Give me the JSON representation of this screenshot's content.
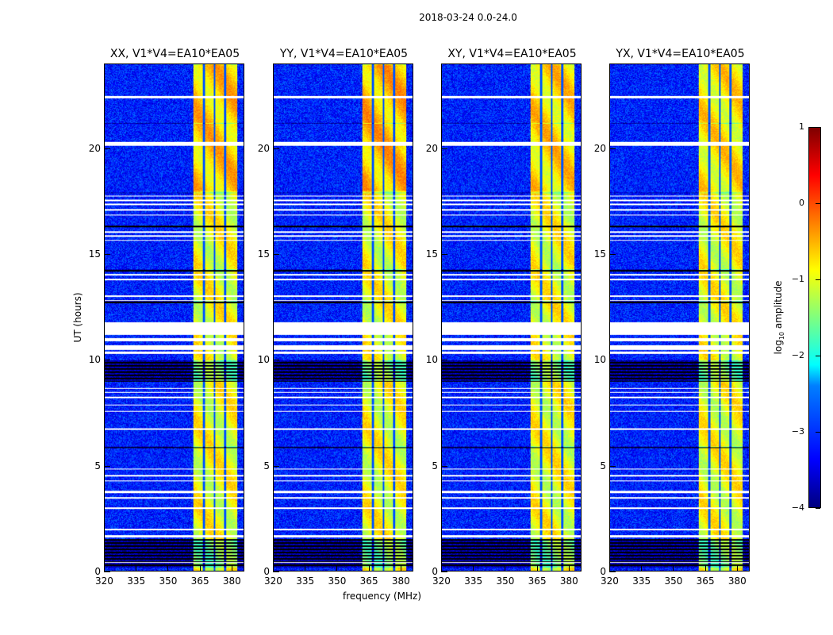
{
  "chart_data": {
    "type": "heatmap",
    "title": "2018-03-24 0.0-24.0",
    "xlabel": "frequency (MHz)",
    "ylabel": "UT (hours)",
    "xlim": [
      320,
      386
    ],
    "ylim": [
      0,
      24
    ],
    "xticks": [
      320,
      335,
      350,
      365,
      380
    ],
    "yticks": [
      0,
      5,
      10,
      15,
      20
    ],
    "panels": [
      {
        "title": "XX, V1*V4=EA10*EA05",
        "band_peak": -0.5
      },
      {
        "title": "YY, V1*V4=EA10*EA05",
        "band_peak": -0.4
      },
      {
        "title": "XY, V1*V4=EA10*EA05",
        "band_peak": -0.6
      },
      {
        "title": "YX, V1*V4=EA10*EA05",
        "band_peak": -0.7
      }
    ],
    "band_mhz": [
      362,
      383
    ],
    "subband_edges_mhz": [
      367,
      372,
      377
    ],
    "background_log10_amp": -3.3,
    "band_log10_amp": -0.9,
    "flagged_hours": [
      [
        22.4,
        22.5
      ],
      [
        20.15,
        20.35
      ],
      [
        17.75,
        17.8
      ],
      [
        17.55,
        17.6
      ],
      [
        17.35,
        17.4
      ],
      [
        17.1,
        17.15
      ],
      [
        16.85,
        16.9
      ],
      [
        16.05,
        16.12
      ],
      [
        15.85,
        15.9
      ],
      [
        15.65,
        15.7
      ],
      [
        14.0,
        14.1
      ],
      [
        13.8,
        13.85
      ],
      [
        13.0,
        13.05
      ],
      [
        12.8,
        12.85
      ],
      [
        11.2,
        11.8
      ],
      [
        10.9,
        11.05
      ],
      [
        10.5,
        10.7
      ],
      [
        10.3,
        10.4
      ],
      [
        8.65,
        8.7
      ],
      [
        8.45,
        8.5
      ],
      [
        8.2,
        8.25
      ],
      [
        7.85,
        7.9
      ],
      [
        7.55,
        7.6
      ],
      [
        6.7,
        6.75
      ],
      [
        4.8,
        4.85
      ],
      [
        4.5,
        4.55
      ],
      [
        4.25,
        4.3
      ],
      [
        3.7,
        3.8
      ],
      [
        3.45,
        3.5
      ],
      [
        2.95,
        3.0
      ],
      [
        1.95,
        2.0
      ],
      [
        1.6,
        1.7
      ],
      [
        0.4,
        0.45
      ]
    ],
    "low_hours": [
      [
        21.2,
        21.25
      ],
      [
        17.9,
        17.95
      ],
      [
        16.3,
        16.35
      ],
      [
        14.2,
        14.3
      ],
      [
        12.7,
        12.8
      ],
      [
        9.0,
        10.0
      ],
      [
        5.85,
        5.9
      ],
      [
        0.15,
        1.5
      ]
    ],
    "colorbar": {
      "label_main": "log",
      "label_sub": "10",
      "label_rest": " amplitude",
      "ticks": [
        1,
        0,
        -1,
        -2,
        -3,
        -4
      ],
      "range": [
        -4,
        1
      ],
      "colormap": "jet"
    }
  }
}
